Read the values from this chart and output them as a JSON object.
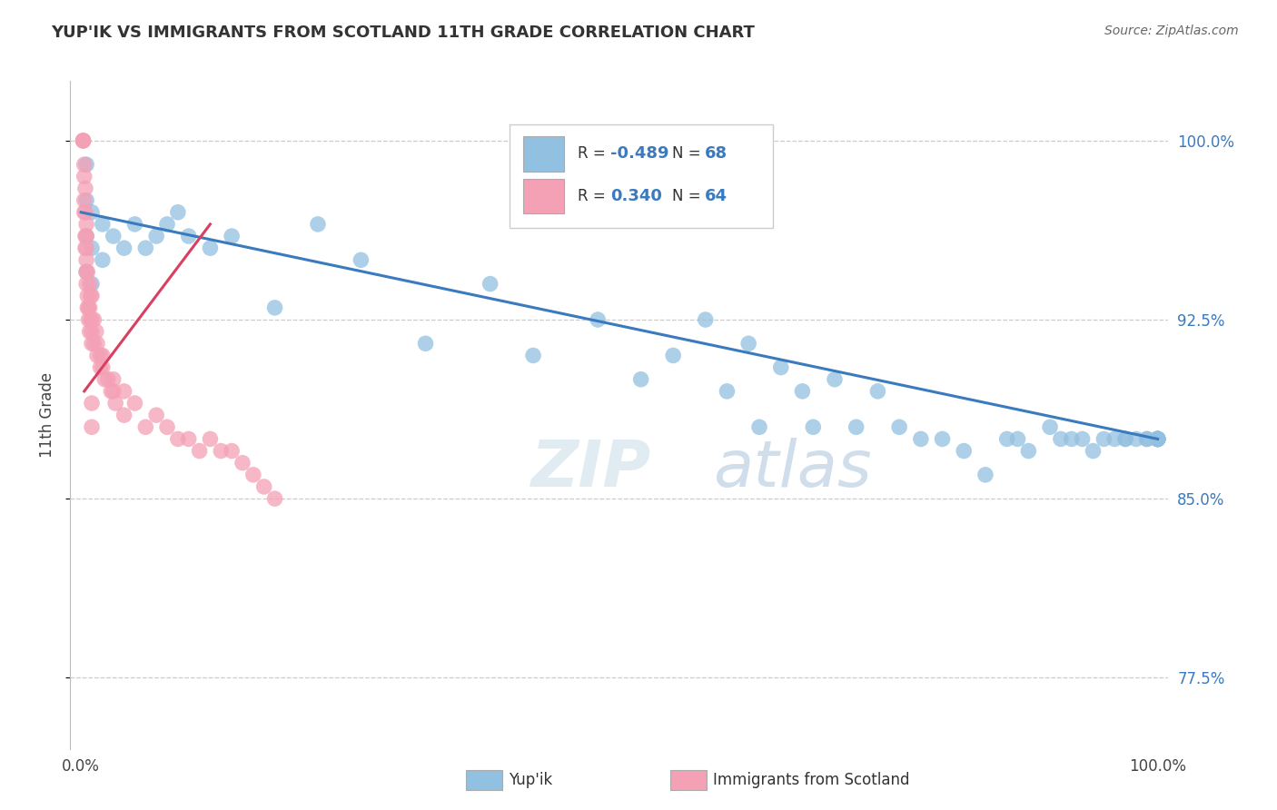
{
  "title": "YUP'IK VS IMMIGRANTS FROM SCOTLAND 11TH GRADE CORRELATION CHART",
  "source_text": "Source: ZipAtlas.com",
  "ylabel": "11th Grade",
  "watermark_zip": "ZIP",
  "watermark_atlas": "atlas",
  "blue_R": -0.489,
  "blue_N": 68,
  "pink_R": 0.34,
  "pink_N": 64,
  "y_ticks": [
    0.775,
    0.85,
    0.925,
    1.0
  ],
  "y_tick_labels": [
    "77.5%",
    "85.0%",
    "92.5%",
    "100.0%"
  ],
  "xlim": [
    -0.01,
    1.01
  ],
  "ylim": [
    0.745,
    1.025
  ],
  "blue_color": "#92c0e0",
  "pink_color": "#f4a0b5",
  "line_blue": "#3a7abf",
  "line_pink": "#d94060",
  "legend_labels": [
    "Yup'ik",
    "Immigrants from Scotland"
  ],
  "blue_scatter_x": [
    0.005,
    0.005,
    0.005,
    0.005,
    0.01,
    0.01,
    0.01,
    0.02,
    0.02,
    0.03,
    0.04,
    0.05,
    0.06,
    0.07,
    0.08,
    0.09,
    0.1,
    0.12,
    0.14,
    0.18,
    0.22,
    0.26,
    0.32,
    0.38,
    0.42,
    0.48,
    0.52,
    0.55,
    0.58,
    0.6,
    0.62,
    0.63,
    0.65,
    0.67,
    0.68,
    0.7,
    0.72,
    0.74,
    0.76,
    0.78,
    0.8,
    0.82,
    0.84,
    0.86,
    0.87,
    0.88,
    0.9,
    0.91,
    0.92,
    0.93,
    0.94,
    0.95,
    0.96,
    0.97,
    0.97,
    0.98,
    0.99,
    0.99,
    1.0,
    1.0,
    1.0,
    1.0,
    1.0,
    1.0,
    1.0,
    1.0,
    1.0,
    1.0
  ],
  "blue_scatter_y": [
    0.99,
    0.975,
    0.96,
    0.945,
    0.97,
    0.955,
    0.94,
    0.965,
    0.95,
    0.96,
    0.955,
    0.965,
    0.955,
    0.96,
    0.965,
    0.97,
    0.96,
    0.955,
    0.96,
    0.93,
    0.965,
    0.95,
    0.915,
    0.94,
    0.91,
    0.925,
    0.9,
    0.91,
    0.925,
    0.895,
    0.915,
    0.88,
    0.905,
    0.895,
    0.88,
    0.9,
    0.88,
    0.895,
    0.88,
    0.875,
    0.875,
    0.87,
    0.86,
    0.875,
    0.875,
    0.87,
    0.88,
    0.875,
    0.875,
    0.875,
    0.87,
    0.875,
    0.875,
    0.875,
    0.875,
    0.875,
    0.875,
    0.875,
    0.875,
    0.875,
    0.875,
    0.875,
    0.875,
    0.875,
    0.875,
    0.875,
    0.875,
    0.875
  ],
  "pink_scatter_x": [
    0.002,
    0.002,
    0.002,
    0.003,
    0.003,
    0.003,
    0.003,
    0.004,
    0.004,
    0.004,
    0.004,
    0.005,
    0.005,
    0.005,
    0.005,
    0.005,
    0.005,
    0.006,
    0.006,
    0.006,
    0.007,
    0.007,
    0.008,
    0.008,
    0.008,
    0.009,
    0.009,
    0.01,
    0.01,
    0.01,
    0.01,
    0.012,
    0.012,
    0.014,
    0.015,
    0.015,
    0.018,
    0.018,
    0.02,
    0.02,
    0.022,
    0.025,
    0.028,
    0.03,
    0.03,
    0.032,
    0.04,
    0.04,
    0.05,
    0.06,
    0.07,
    0.08,
    0.09,
    0.1,
    0.11,
    0.12,
    0.13,
    0.14,
    0.15,
    0.16,
    0.17,
    0.18,
    0.01,
    0.01
  ],
  "pink_scatter_y": [
    1.0,
    1.0,
    1.0,
    0.99,
    0.985,
    0.975,
    0.97,
    0.98,
    0.97,
    0.96,
    0.955,
    0.965,
    0.96,
    0.955,
    0.95,
    0.945,
    0.94,
    0.945,
    0.935,
    0.93,
    0.93,
    0.925,
    0.94,
    0.93,
    0.92,
    0.935,
    0.925,
    0.935,
    0.925,
    0.92,
    0.915,
    0.925,
    0.915,
    0.92,
    0.915,
    0.91,
    0.91,
    0.905,
    0.91,
    0.905,
    0.9,
    0.9,
    0.895,
    0.9,
    0.895,
    0.89,
    0.895,
    0.885,
    0.89,
    0.88,
    0.885,
    0.88,
    0.875,
    0.875,
    0.87,
    0.875,
    0.87,
    0.87,
    0.865,
    0.86,
    0.855,
    0.85,
    0.89,
    0.88
  ],
  "background_color": "#ffffff",
  "grid_color": "#cccccc",
  "blue_line_x0": 0.0,
  "blue_line_x1": 1.0,
  "blue_line_y0": 0.97,
  "blue_line_y1": 0.875,
  "pink_line_x0": 0.003,
  "pink_line_x1": 0.12,
  "pink_line_y0": 0.895,
  "pink_line_y1": 0.965
}
